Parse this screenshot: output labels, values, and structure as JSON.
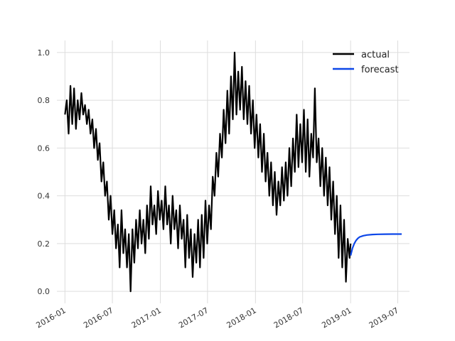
{
  "chart_data": {
    "type": "line",
    "title": "",
    "xlabel": "",
    "ylabel": "",
    "x_range": [
      "2015-12-01",
      "2019-08-15"
    ],
    "ylim": [
      -0.05,
      1.05
    ],
    "grid": true,
    "legend_placement": "top-right",
    "x_ticks": [
      "2016-01",
      "2016-07",
      "2017-01",
      "2017-07",
      "2018-01",
      "2018-07",
      "2019-01",
      "2019-07"
    ],
    "y_ticks": [
      "0.0",
      "0.2",
      "0.4",
      "0.6",
      "0.8",
      "1.0"
    ],
    "series": [
      {
        "name": "actual",
        "color": "#000000",
        "points": [
          [
            "2016-01-01",
            0.74
          ],
          [
            "2016-01-08",
            0.8
          ],
          [
            "2016-01-15",
            0.66
          ],
          [
            "2016-01-22",
            0.86
          ],
          [
            "2016-01-29",
            0.7
          ],
          [
            "2016-02-05",
            0.85
          ],
          [
            "2016-02-12",
            0.68
          ],
          [
            "2016-02-19",
            0.8
          ],
          [
            "2016-02-26",
            0.72
          ],
          [
            "2016-03-04",
            0.83
          ],
          [
            "2016-03-11",
            0.74
          ],
          [
            "2016-03-18",
            0.78
          ],
          [
            "2016-03-25",
            0.7
          ],
          [
            "2016-04-01",
            0.76
          ],
          [
            "2016-04-08",
            0.66
          ],
          [
            "2016-04-15",
            0.72
          ],
          [
            "2016-04-22",
            0.6
          ],
          [
            "2016-04-29",
            0.68
          ],
          [
            "2016-05-06",
            0.55
          ],
          [
            "2016-05-13",
            0.62
          ],
          [
            "2016-05-20",
            0.46
          ],
          [
            "2016-05-27",
            0.54
          ],
          [
            "2016-06-03",
            0.4
          ],
          [
            "2016-06-10",
            0.46
          ],
          [
            "2016-06-17",
            0.3
          ],
          [
            "2016-06-24",
            0.4
          ],
          [
            "2016-07-01",
            0.24
          ],
          [
            "2016-07-08",
            0.34
          ],
          [
            "2016-07-15",
            0.18
          ],
          [
            "2016-07-22",
            0.28
          ],
          [
            "2016-07-29",
            0.1
          ],
          [
            "2016-08-05",
            0.34
          ],
          [
            "2016-08-12",
            0.16
          ],
          [
            "2016-08-19",
            0.26
          ],
          [
            "2016-08-26",
            0.1
          ],
          [
            "2016-09-02",
            0.24
          ],
          [
            "2016-09-09",
            0.0
          ],
          [
            "2016-09-16",
            0.26
          ],
          [
            "2016-09-23",
            0.12
          ],
          [
            "2016-09-30",
            0.3
          ],
          [
            "2016-10-07",
            0.18
          ],
          [
            "2016-10-14",
            0.34
          ],
          [
            "2016-10-21",
            0.2
          ],
          [
            "2016-10-28",
            0.3
          ],
          [
            "2016-11-04",
            0.16
          ],
          [
            "2016-11-11",
            0.36
          ],
          [
            "2016-11-18",
            0.22
          ],
          [
            "2016-11-25",
            0.44
          ],
          [
            "2016-12-02",
            0.28
          ],
          [
            "2016-12-09",
            0.36
          ],
          [
            "2016-12-16",
            0.24
          ],
          [
            "2016-12-23",
            0.42
          ],
          [
            "2016-12-30",
            0.3
          ],
          [
            "2017-01-06",
            0.38
          ],
          [
            "2017-01-13",
            0.26
          ],
          [
            "2017-01-20",
            0.44
          ],
          [
            "2017-01-27",
            0.28
          ],
          [
            "2017-02-03",
            0.36
          ],
          [
            "2017-02-10",
            0.2
          ],
          [
            "2017-02-17",
            0.4
          ],
          [
            "2017-02-24",
            0.26
          ],
          [
            "2017-03-03",
            0.34
          ],
          [
            "2017-03-10",
            0.18
          ],
          [
            "2017-03-17",
            0.36
          ],
          [
            "2017-03-24",
            0.22
          ],
          [
            "2017-03-31",
            0.3
          ],
          [
            "2017-04-07",
            0.1
          ],
          [
            "2017-04-14",
            0.32
          ],
          [
            "2017-04-21",
            0.14
          ],
          [
            "2017-04-28",
            0.26
          ],
          [
            "2017-05-05",
            0.06
          ],
          [
            "2017-05-12",
            0.24
          ],
          [
            "2017-05-19",
            0.12
          ],
          [
            "2017-05-26",
            0.3
          ],
          [
            "2017-06-02",
            0.1
          ],
          [
            "2017-06-09",
            0.32
          ],
          [
            "2017-06-16",
            0.14
          ],
          [
            "2017-06-23",
            0.38
          ],
          [
            "2017-06-30",
            0.2
          ],
          [
            "2017-07-07",
            0.36
          ],
          [
            "2017-07-14",
            0.26
          ],
          [
            "2017-07-21",
            0.48
          ],
          [
            "2017-07-28",
            0.4
          ],
          [
            "2017-08-04",
            0.58
          ],
          [
            "2017-08-11",
            0.48
          ],
          [
            "2017-08-18",
            0.66
          ],
          [
            "2017-08-25",
            0.56
          ],
          [
            "2017-09-01",
            0.76
          ],
          [
            "2017-09-08",
            0.62
          ],
          [
            "2017-09-15",
            0.84
          ],
          [
            "2017-09-22",
            0.66
          ],
          [
            "2017-09-29",
            0.9
          ],
          [
            "2017-10-06",
            0.72
          ],
          [
            "2017-10-13",
            1.0
          ],
          [
            "2017-10-20",
            0.74
          ],
          [
            "2017-10-27",
            0.92
          ],
          [
            "2017-11-03",
            0.76
          ],
          [
            "2017-11-10",
            0.94
          ],
          [
            "2017-11-17",
            0.72
          ],
          [
            "2017-11-24",
            0.88
          ],
          [
            "2017-12-01",
            0.7
          ],
          [
            "2017-12-08",
            0.86
          ],
          [
            "2017-12-15",
            0.66
          ],
          [
            "2017-12-22",
            0.8
          ],
          [
            "2017-12-29",
            0.6
          ],
          [
            "2018-01-05",
            0.74
          ],
          [
            "2018-01-12",
            0.56
          ],
          [
            "2018-01-19",
            0.7
          ],
          [
            "2018-01-26",
            0.5
          ],
          [
            "2018-02-02",
            0.66
          ],
          [
            "2018-02-09",
            0.46
          ],
          [
            "2018-02-16",
            0.58
          ],
          [
            "2018-02-23",
            0.4
          ],
          [
            "2018-03-02",
            0.54
          ],
          [
            "2018-03-09",
            0.36
          ],
          [
            "2018-03-16",
            0.5
          ],
          [
            "2018-03-23",
            0.32
          ],
          [
            "2018-03-30",
            0.46
          ],
          [
            "2018-04-06",
            0.36
          ],
          [
            "2018-04-13",
            0.52
          ],
          [
            "2018-04-20",
            0.38
          ],
          [
            "2018-04-27",
            0.54
          ],
          [
            "2018-05-04",
            0.4
          ],
          [
            "2018-05-11",
            0.6
          ],
          [
            "2018-05-18",
            0.44
          ],
          [
            "2018-05-25",
            0.64
          ],
          [
            "2018-06-01",
            0.5
          ],
          [
            "2018-06-08",
            0.74
          ],
          [
            "2018-06-15",
            0.52
          ],
          [
            "2018-06-22",
            0.7
          ],
          [
            "2018-06-29",
            0.54
          ],
          [
            "2018-07-06",
            0.76
          ],
          [
            "2018-07-13",
            0.5
          ],
          [
            "2018-07-20",
            0.72
          ],
          [
            "2018-07-27",
            0.48
          ],
          [
            "2018-08-03",
            0.66
          ],
          [
            "2018-08-10",
            0.56
          ],
          [
            "2018-08-17",
            0.85
          ],
          [
            "2018-08-24",
            0.54
          ],
          [
            "2018-08-31",
            0.64
          ],
          [
            "2018-09-07",
            0.44
          ],
          [
            "2018-09-14",
            0.6
          ],
          [
            "2018-09-21",
            0.4
          ],
          [
            "2018-09-28",
            0.56
          ],
          [
            "2018-10-05",
            0.36
          ],
          [
            "2018-10-12",
            0.52
          ],
          [
            "2018-10-19",
            0.3
          ],
          [
            "2018-10-26",
            0.46
          ],
          [
            "2018-11-02",
            0.24
          ],
          [
            "2018-11-09",
            0.4
          ],
          [
            "2018-11-16",
            0.14
          ],
          [
            "2018-11-23",
            0.36
          ],
          [
            "2018-11-30",
            0.1
          ],
          [
            "2018-12-07",
            0.3
          ],
          [
            "2018-12-14",
            0.04
          ],
          [
            "2018-12-21",
            0.22
          ],
          [
            "2018-12-28",
            0.14
          ],
          [
            "2019-01-01",
            0.2
          ]
        ]
      },
      {
        "name": "forecast",
        "color": "#0d47e8",
        "points": [
          [
            "2019-01-01",
            0.15
          ],
          [
            "2019-01-08",
            0.18
          ],
          [
            "2019-01-15",
            0.2
          ],
          [
            "2019-01-22",
            0.213
          ],
          [
            "2019-01-29",
            0.222
          ],
          [
            "2019-02-05",
            0.228
          ],
          [
            "2019-02-19",
            0.233
          ],
          [
            "2019-03-05",
            0.236
          ],
          [
            "2019-03-26",
            0.238
          ],
          [
            "2019-04-16",
            0.239
          ],
          [
            "2019-05-14",
            0.2395
          ],
          [
            "2019-06-11",
            0.24
          ],
          [
            "2019-07-16",
            0.24
          ]
        ]
      }
    ]
  }
}
